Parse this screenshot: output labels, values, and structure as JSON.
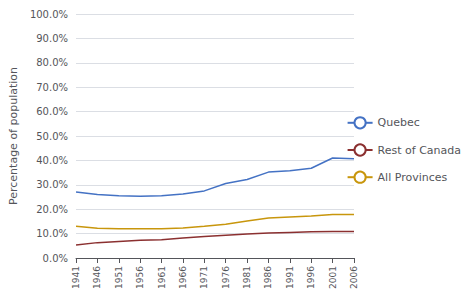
{
  "chart_data": {
    "type": "line",
    "x": [
      1941,
      1946,
      1951,
      1956,
      1961,
      1966,
      1971,
      1976,
      1981,
      1986,
      1991,
      1996,
      2001,
      2006
    ],
    "series": [
      {
        "name": "Quebec",
        "color": "#4472C4",
        "values": [
          0.27,
          0.26,
          0.255,
          0.253,
          0.255,
          0.262,
          0.275,
          0.305,
          0.322,
          0.352,
          0.358,
          0.368,
          0.41,
          0.407
        ]
      },
      {
        "name": "Rest of Canada",
        "color": "#8B3030",
        "values": [
          0.053,
          0.063,
          0.068,
          0.073,
          0.075,
          0.082,
          0.088,
          0.093,
          0.098,
          0.102,
          0.105,
          0.108,
          0.109,
          0.109
        ]
      },
      {
        "name": "All Provinces",
        "color": "#C8960C",
        "values": [
          0.13,
          0.122,
          0.12,
          0.12,
          0.12,
          0.123,
          0.13,
          0.138,
          0.152,
          0.164,
          0.168,
          0.172,
          0.178,
          0.178
        ]
      }
    ],
    "ylabel": "Percentage of population",
    "xlim": [
      1941,
      2006
    ],
    "xticks": [
      1941,
      1946,
      1951,
      1956,
      1961,
      1966,
      1971,
      1976,
      1981,
      1986,
      1991,
      1996,
      2001,
      2006
    ],
    "ylim": [
      0.0,
      1.0
    ],
    "yticks": [
      {
        "value": 0.0,
        "label": "0.0%"
      },
      {
        "value": 0.1,
        "label": "10.0%"
      },
      {
        "value": 0.2,
        "label": "20.0%"
      },
      {
        "value": 0.3,
        "label": "30.0%"
      },
      {
        "value": 0.4,
        "label": "40.0%"
      },
      {
        "value": 0.5,
        "label": "50.0%"
      },
      {
        "value": 0.6,
        "label": "60.0%"
      },
      {
        "value": 0.7,
        "label": "70.0%"
      },
      {
        "value": 0.8,
        "label": "80.0%"
      },
      {
        "value": 0.9,
        "label": "90.0%"
      },
      {
        "value": 1.0,
        "label": "100.0%"
      }
    ],
    "grid": true,
    "legend": "right"
  }
}
